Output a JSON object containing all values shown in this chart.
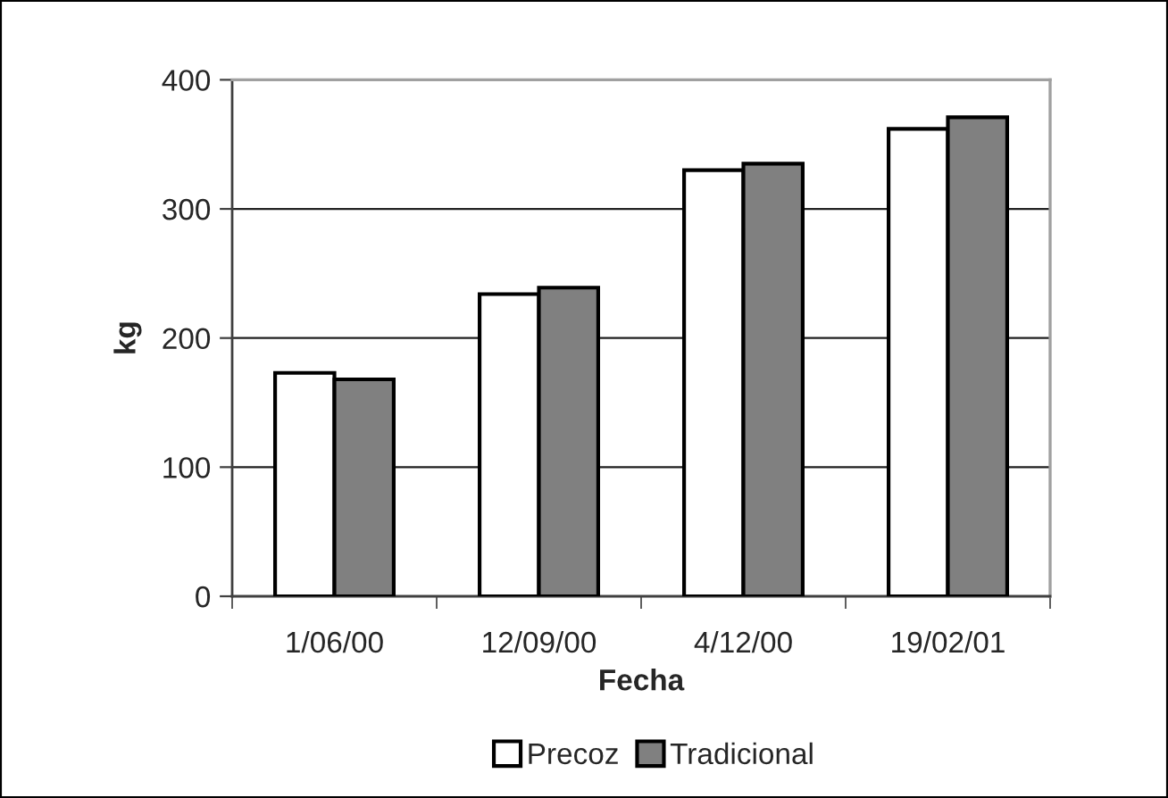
{
  "chart_data": {
    "type": "bar",
    "xlabel": "Fecha",
    "ylabel": "kg",
    "categories": [
      "1/06/00",
      "12/09/00",
      "4/12/00",
      "19/02/01"
    ],
    "series": [
      {
        "name": "Precoz",
        "color": "#ffffff",
        "values": [
          173,
          234,
          330,
          362
        ]
      },
      {
        "name": "Tradicional",
        "color": "#808080",
        "values": [
          168,
          239,
          335,
          371
        ]
      }
    ],
    "ylim": [
      0,
      400
    ],
    "yticks": [
      0,
      100,
      200,
      300,
      400
    ],
    "grid": "y",
    "legend": "bottom"
  }
}
